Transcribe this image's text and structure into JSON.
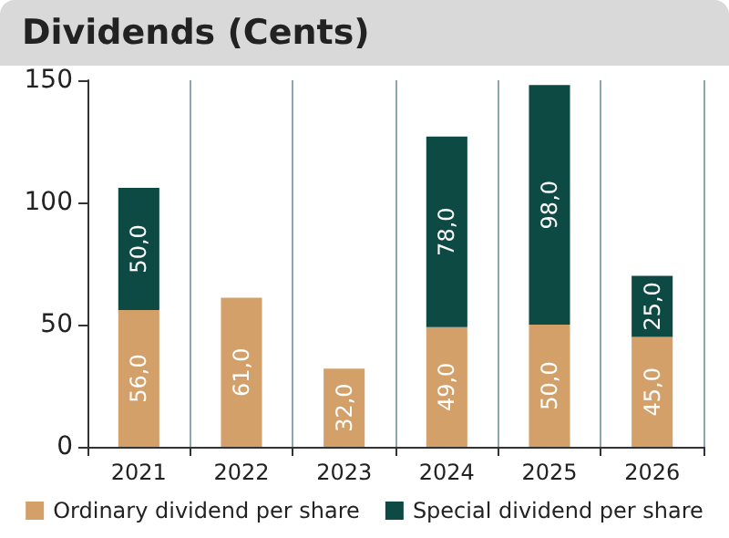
{
  "chart_data": {
    "type": "bar",
    "title": "Dividends (Cents)",
    "categories": [
      "2021",
      "2022",
      "2023",
      "2024",
      "2025",
      "2026"
    ],
    "series": [
      {
        "name": "Ordinary dividend per share",
        "color": "#d4a06a",
        "values": [
          56,
          61,
          32,
          49,
          50,
          45
        ],
        "value_labels": [
          "56,0",
          "61,0",
          "32,0",
          "49,0",
          "50,0",
          "45,0"
        ]
      },
      {
        "name": "Special dividend per share",
        "color": "#0e4a44",
        "values": [
          50,
          null,
          null,
          78,
          98,
          25
        ],
        "value_labels": [
          "50,0",
          null,
          null,
          "78,0",
          "98,0",
          "25,0"
        ]
      }
    ],
    "stacked": true,
    "ylim": [
      0,
      150
    ],
    "yticks": [
      0,
      50,
      100,
      150
    ],
    "grid": "x",
    "legend": "bottom"
  }
}
